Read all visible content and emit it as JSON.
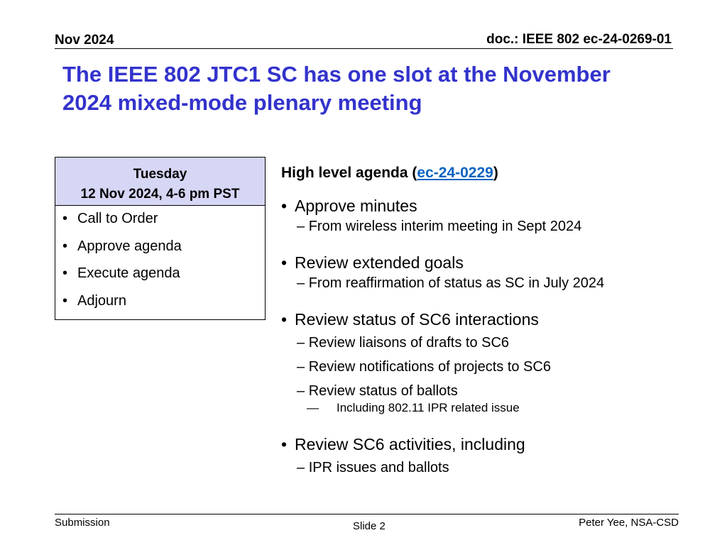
{
  "header": {
    "date": "Nov 2024",
    "doc_id": "doc.: IEEE 802 ec-24-0269-01"
  },
  "slide": {
    "title_line1": "The IEEE 802 JTC1 SC has one slot at the November",
    "title_line2": "2024 mixed-mode plenary meeting"
  },
  "session_table": {
    "day": "Tuesday",
    "datetime": "12 Nov 2024, 4-6 pm PST",
    "items": [
      "Call to Order",
      "Approve agenda",
      "Execute agenda",
      "Adjourn"
    ]
  },
  "agenda": {
    "heading_prefix": "High level agenda (",
    "heading_link": "ec-24-0229",
    "heading_suffix": ")",
    "sections": [
      {
        "label": "Approve minutes",
        "subs": [
          "From wireless interim meeting in Sept 2024"
        ]
      },
      {
        "label": "Review extended goals",
        "subs": [
          "From reaffirmation of status as SC in July 2024"
        ]
      },
      {
        "label": "Review status of SC6 interactions",
        "subs": [
          "Review liaisons of drafts to SC6",
          "Review notifications of projects to SC6",
          "Review status of ballots"
        ],
        "subsub": "Including 802.11 IPR related issue"
      },
      {
        "label": "Review SC6 activities, including",
        "subs": [
          "IPR issues and ballots"
        ]
      }
    ]
  },
  "footer": {
    "left": "Submission",
    "center": "Slide 2",
    "right": "Peter Yee, NSA-CSD"
  },
  "colors": {
    "title": "#3333cc",
    "table_header_bg": "#d6d6f5",
    "link": "#0563c1"
  }
}
